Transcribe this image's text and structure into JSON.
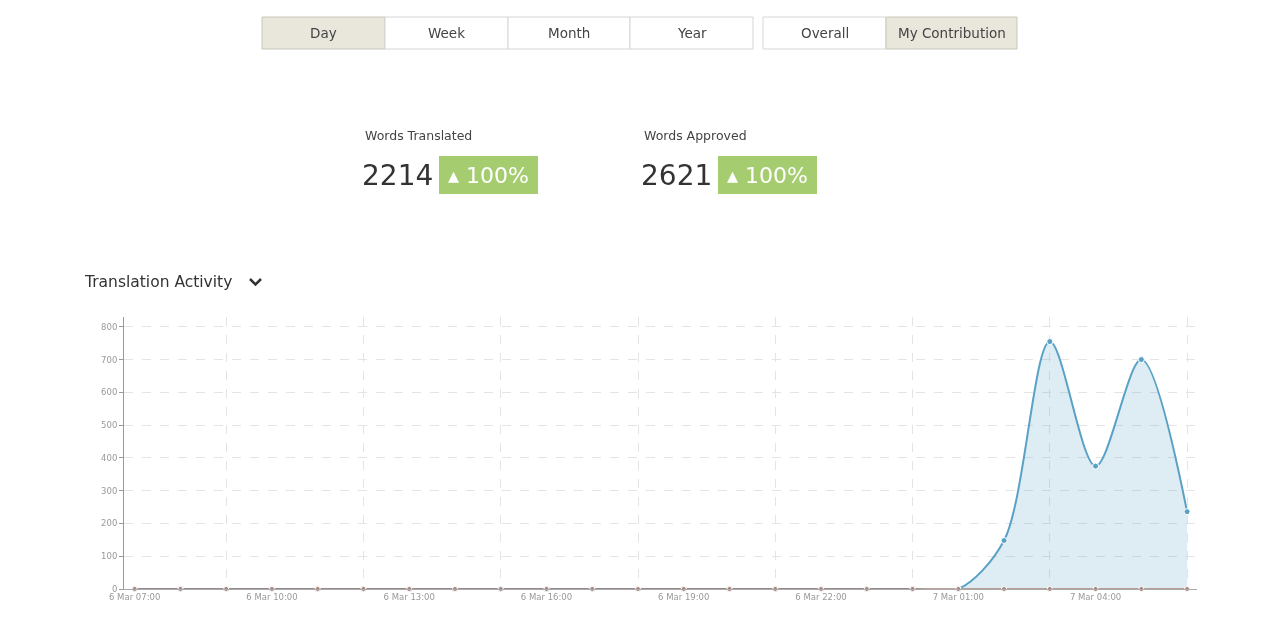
{
  "chart_data": [
    {
      "type": "other",
      "annotations": [
        "Day",
        "Week",
        "Month",
        "Year",
        "Overall",
        "My Contribution",
        "Words Translated",
        "2214",
        "▴ 100%",
        "Words Approved",
        "2621",
        "▴ 100%"
      ]
    },
    {
      "type": "area",
      "title": "Translation Activity",
      "x": [
        "--03-06T07:00",
        "--03-06T08:00",
        "--03-06T09:00",
        "--03-06T10:00",
        "--03-06T11:00",
        "--03-06T12:00",
        "--03-06T13:00",
        "--03-06T14:00",
        "--03-06T15:00",
        "--03-06T16:00",
        "--03-06T17:00",
        "--03-06T18:00",
        "--03-06T19:00",
        "--03-06T20:00",
        "--03-06T21:00",
        "--03-06T22:00",
        "--03-06T23:00",
        "--03-07T00:00",
        "--03-07T01:00",
        "--03-07T02:00",
        "--03-07T03:00",
        "--03-07T04:00",
        "--03-07T05:00",
        "--03-07T06:00"
      ],
      "series": [
        {
          "color": "#5aa1c6",
          "values": [
            0,
            0,
            0,
            0,
            0,
            0,
            0,
            0,
            0,
            0,
            0,
            0,
            0,
            0,
            0,
            0,
            0,
            0,
            0,
            148,
            755,
            375,
            700,
            236
          ]
        },
        {
          "type": "line",
          "color": "#a8837a",
          "values": [
            0,
            0,
            0,
            0,
            0,
            0,
            0,
            0,
            0,
            0,
            0,
            0,
            0,
            0,
            0,
            0,
            0,
            0,
            0,
            0,
            0,
            0,
            0,
            0
          ]
        }
      ],
      "xlim": [
        "--03-06T06:46",
        "--03-07T06:13"
      ],
      "xticks": [
        {
          "value": "--03-06T07:00",
          "label": "6 Mar 07:00"
        },
        {
          "value": "--03-06T09:00",
          "label": null
        },
        {
          "value": "--03-06T10:00",
          "label": "6 Mar 10:00"
        },
        {
          "value": "--03-06T12:00",
          "label": null
        },
        {
          "value": "--03-06T13:00",
          "label": "6 Mar 13:00"
        },
        {
          "value": "--03-06T15:00",
          "label": null
        },
        {
          "value": "--03-06T16:00",
          "label": "6 Mar 16:00"
        },
        {
          "value": "--03-06T18:00",
          "label": null
        },
        {
          "value": "--03-06T19:00",
          "label": "6 Mar 19:00"
        },
        {
          "value": "--03-06T21:00",
          "label": null
        },
        {
          "value": "--03-06T22:00",
          "label": "6 Mar 22:00"
        },
        {
          "value": "--03-07T00:00",
          "label": null
        },
        {
          "value": "--03-07T01:00",
          "label": "7 Mar 01:00"
        },
        {
          "value": "--03-07T03:00",
          "label": null
        },
        {
          "value": "--03-07T04:00",
          "label": "7 Mar 04:00"
        },
        {
          "value": "--03-07T06:00",
          "label": null
        }
      ],
      "ylim": [
        0,
        830
      ],
      "yticks": [
        0,
        100,
        200,
        300,
        400,
        500,
        600,
        700,
        800
      ],
      "grid": true,
      "marker": "circle"
    }
  ]
}
